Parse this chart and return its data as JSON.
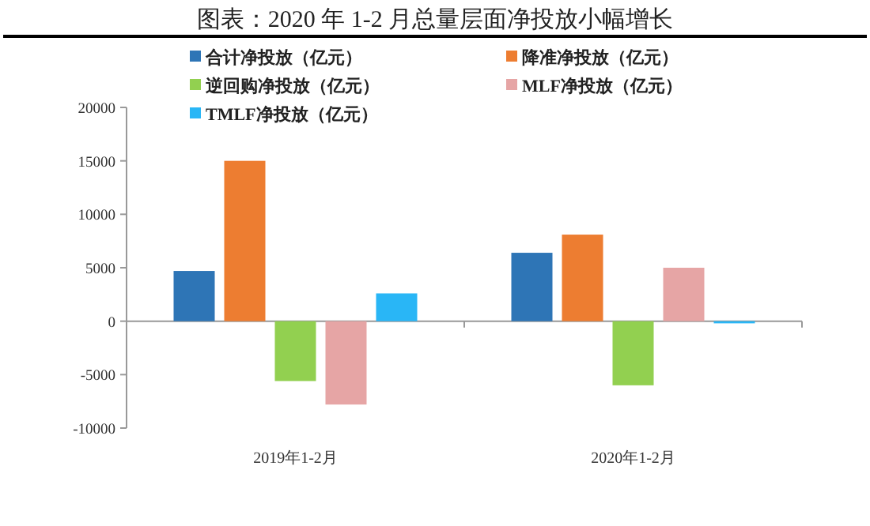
{
  "chart_data": {
    "type": "bar",
    "title": "图表：2020 年 1-2 月总量层面净投放小幅增长",
    "categories": [
      "2019年1-2月",
      "2020年1-2月"
    ],
    "series": [
      {
        "name": "合计净投放（亿元）",
        "color": "#2e75b6",
        "values": [
          4700,
          6400
        ]
      },
      {
        "name": "降准净投放（亿元）",
        "color": "#ed7d31",
        "values": [
          15000,
          8100
        ]
      },
      {
        "name": "逆回购净投放（亿元）",
        "color": "#92d050",
        "values": [
          -5600,
          -6000
        ]
      },
      {
        "name": "MLF净投放（亿元）",
        "color": "#e6a5a5",
        "values": [
          -7800,
          5000
        ]
      },
      {
        "name": "TMLF净投放（亿元）",
        "color": "#29b6f6",
        "values": [
          2600,
          -200
        ]
      }
    ],
    "ylim": [
      -10000,
      20000
    ],
    "yticks": [
      -10000,
      -5000,
      0,
      5000,
      10000,
      15000,
      20000
    ],
    "legend": "top"
  }
}
